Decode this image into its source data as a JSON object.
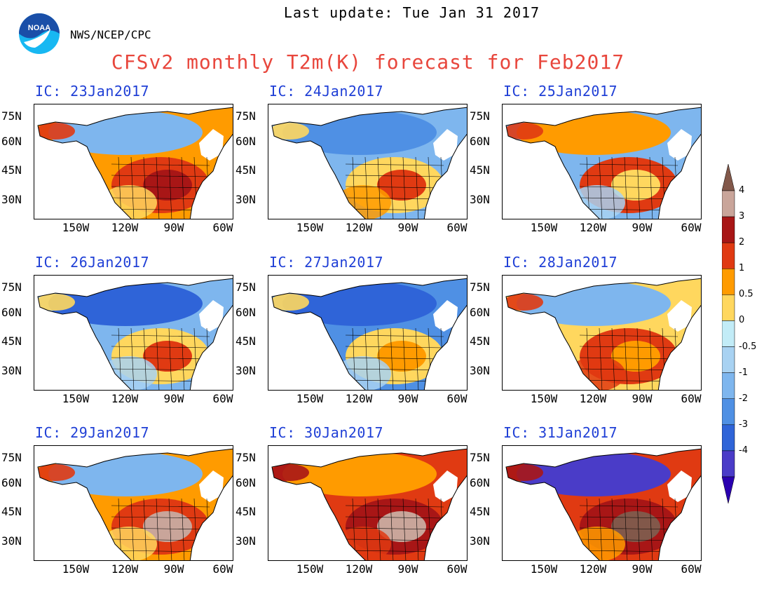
{
  "header": {
    "last_update": "Last update: Tue Jan 31 2017",
    "org": "NWS/NCEP/CPC",
    "title": "CFSv2 monthly T2m(K) forecast for Feb2017",
    "logo_text": "NOAA"
  },
  "lat_labels": [
    "75N",
    "60N",
    "45N",
    "30N"
  ],
  "lon_labels": [
    "150W",
    "120W",
    "90W",
    "60W"
  ],
  "panels": [
    {
      "label": "IC: 23Jan2017",
      "pattern": "warm-east"
    },
    {
      "label": "IC: 24Jan2017",
      "pattern": "cold-west"
    },
    {
      "label": "IC: 25Jan2017",
      "pattern": "warm-southwest"
    },
    {
      "label": "IC: 26Jan2017",
      "pattern": "cold-northwest"
    },
    {
      "label": "IC: 27Jan2017",
      "pattern": "cold-north"
    },
    {
      "label": "IC: 28Jan2017",
      "pattern": "warm-south"
    },
    {
      "label": "IC: 29Jan2017",
      "pattern": "warm-south-strong"
    },
    {
      "label": "IC: 30Jan2017",
      "pattern": "warm-all"
    },
    {
      "label": "IC: 31Jan2017",
      "pattern": "very-warm-central"
    }
  ],
  "colorbar": {
    "labels": [
      "4",
      "3",
      "2",
      "1",
      "0.5",
      "0",
      "-0.5",
      "-1",
      "-2",
      "-3",
      "-4"
    ],
    "colors": [
      "#82584a",
      "#c9a59a",
      "#a81616",
      "#e03a12",
      "#ff9b00",
      "#ffd75e",
      "#c2ecf7",
      "#a8d2f2",
      "#7eb6ee",
      "#4f90e4",
      "#2f64d8",
      "#4a3cc8",
      "#2a00b0"
    ]
  }
}
